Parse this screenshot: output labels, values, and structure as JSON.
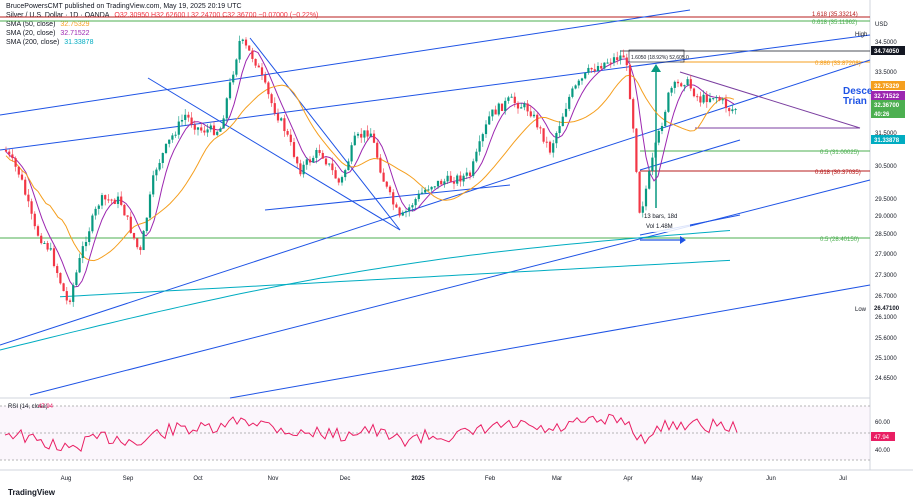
{
  "header": {
    "published": "BrucePowersCMT published on TradingView.com, May 19, 2025 20:19 UTC",
    "symbol": "Silver / U.S. Dollar · 1D · OANDA",
    "ohlc": "O32.30950 H32.62600 L32.24700 C32.36700 −0.07000 (−0.22%)"
  },
  "indicators": [
    {
      "label": "SMA (50, close)",
      "value": "32.75329",
      "color": "#f59f1f"
    },
    {
      "label": "SMA (20, close)",
      "value": "32.71522",
      "color": "#9c27b0"
    },
    {
      "label": "SMA (200, close)",
      "value": "31.33878",
      "color": "#00acc1"
    }
  ],
  "annotations": {
    "descending": "Desce",
    "triangle": "Trian",
    "measure_top": "1.6050 (18.92%) 52,605.0",
    "bars": "13 bars, 18d",
    "vol": "Vol 1.48M",
    "high": "High",
    "low": "Low",
    "fib_886": "0.886 (33.87208)",
    "fib_05_upper": "0.5 (31.00025)",
    "fib_0618": "0.618 (30.37035)",
    "fib_05_lower": "0.5 (28.40150)",
    "top_fib_a": "1.618 (35.33214)",
    "top_fib_b": "0.618 (35.11962)"
  },
  "rsi": {
    "label": "RSI (14, close)",
    "value": "47.94",
    "color": "#e91e63"
  },
  "footer": "TradingView",
  "chart_data": {
    "type": "candlestick",
    "currency": "USD",
    "x_ticks": [
      "Aug",
      "Sep",
      "Oct",
      "Nov",
      "Dec",
      "2025",
      "Feb",
      "Mar",
      "Apr",
      "May",
      "Jun",
      "Jul"
    ],
    "y_ticks": [
      "34.5000",
      "33.5000",
      "31.5000",
      "30.5000",
      "29.5000",
      "29.0000",
      "28.5000",
      "27.9000",
      "27.3000",
      "26.7000",
      "26.1000",
      "25.6000",
      "25.1000",
      "24.6500"
    ],
    "price_labels": [
      {
        "text": "34.74050",
        "bg": "#131722",
        "fg": "#ffffff",
        "price": 34.74
      },
      {
        "text": "32.75329",
        "bg": "#f59f1f",
        "fg": "#ffffff",
        "price": 32.75
      },
      {
        "text": "32.71522",
        "bg": "#9c27b0",
        "fg": "#ffffff",
        "price": 32.62
      },
      {
        "text": "32.36700",
        "bg": "#4caf50",
        "fg": "#ffffff",
        "price": 32.37
      },
      {
        "text": "40:26",
        "bg": "#4caf50",
        "fg": "#ffffff",
        "price": 32.22
      },
      {
        "text": "31.33878",
        "bg": "#00acc1",
        "fg": "#ffffff",
        "price": 31.34
      },
      {
        "text": "26.47100",
        "bg": "#ffffff",
        "fg": "#131722",
        "price": 26.47
      }
    ],
    "rsi_ticks": [
      "60.00",
      "40.00"
    ],
    "rsi_current": "47.94",
    "last_close": 32.367
  }
}
